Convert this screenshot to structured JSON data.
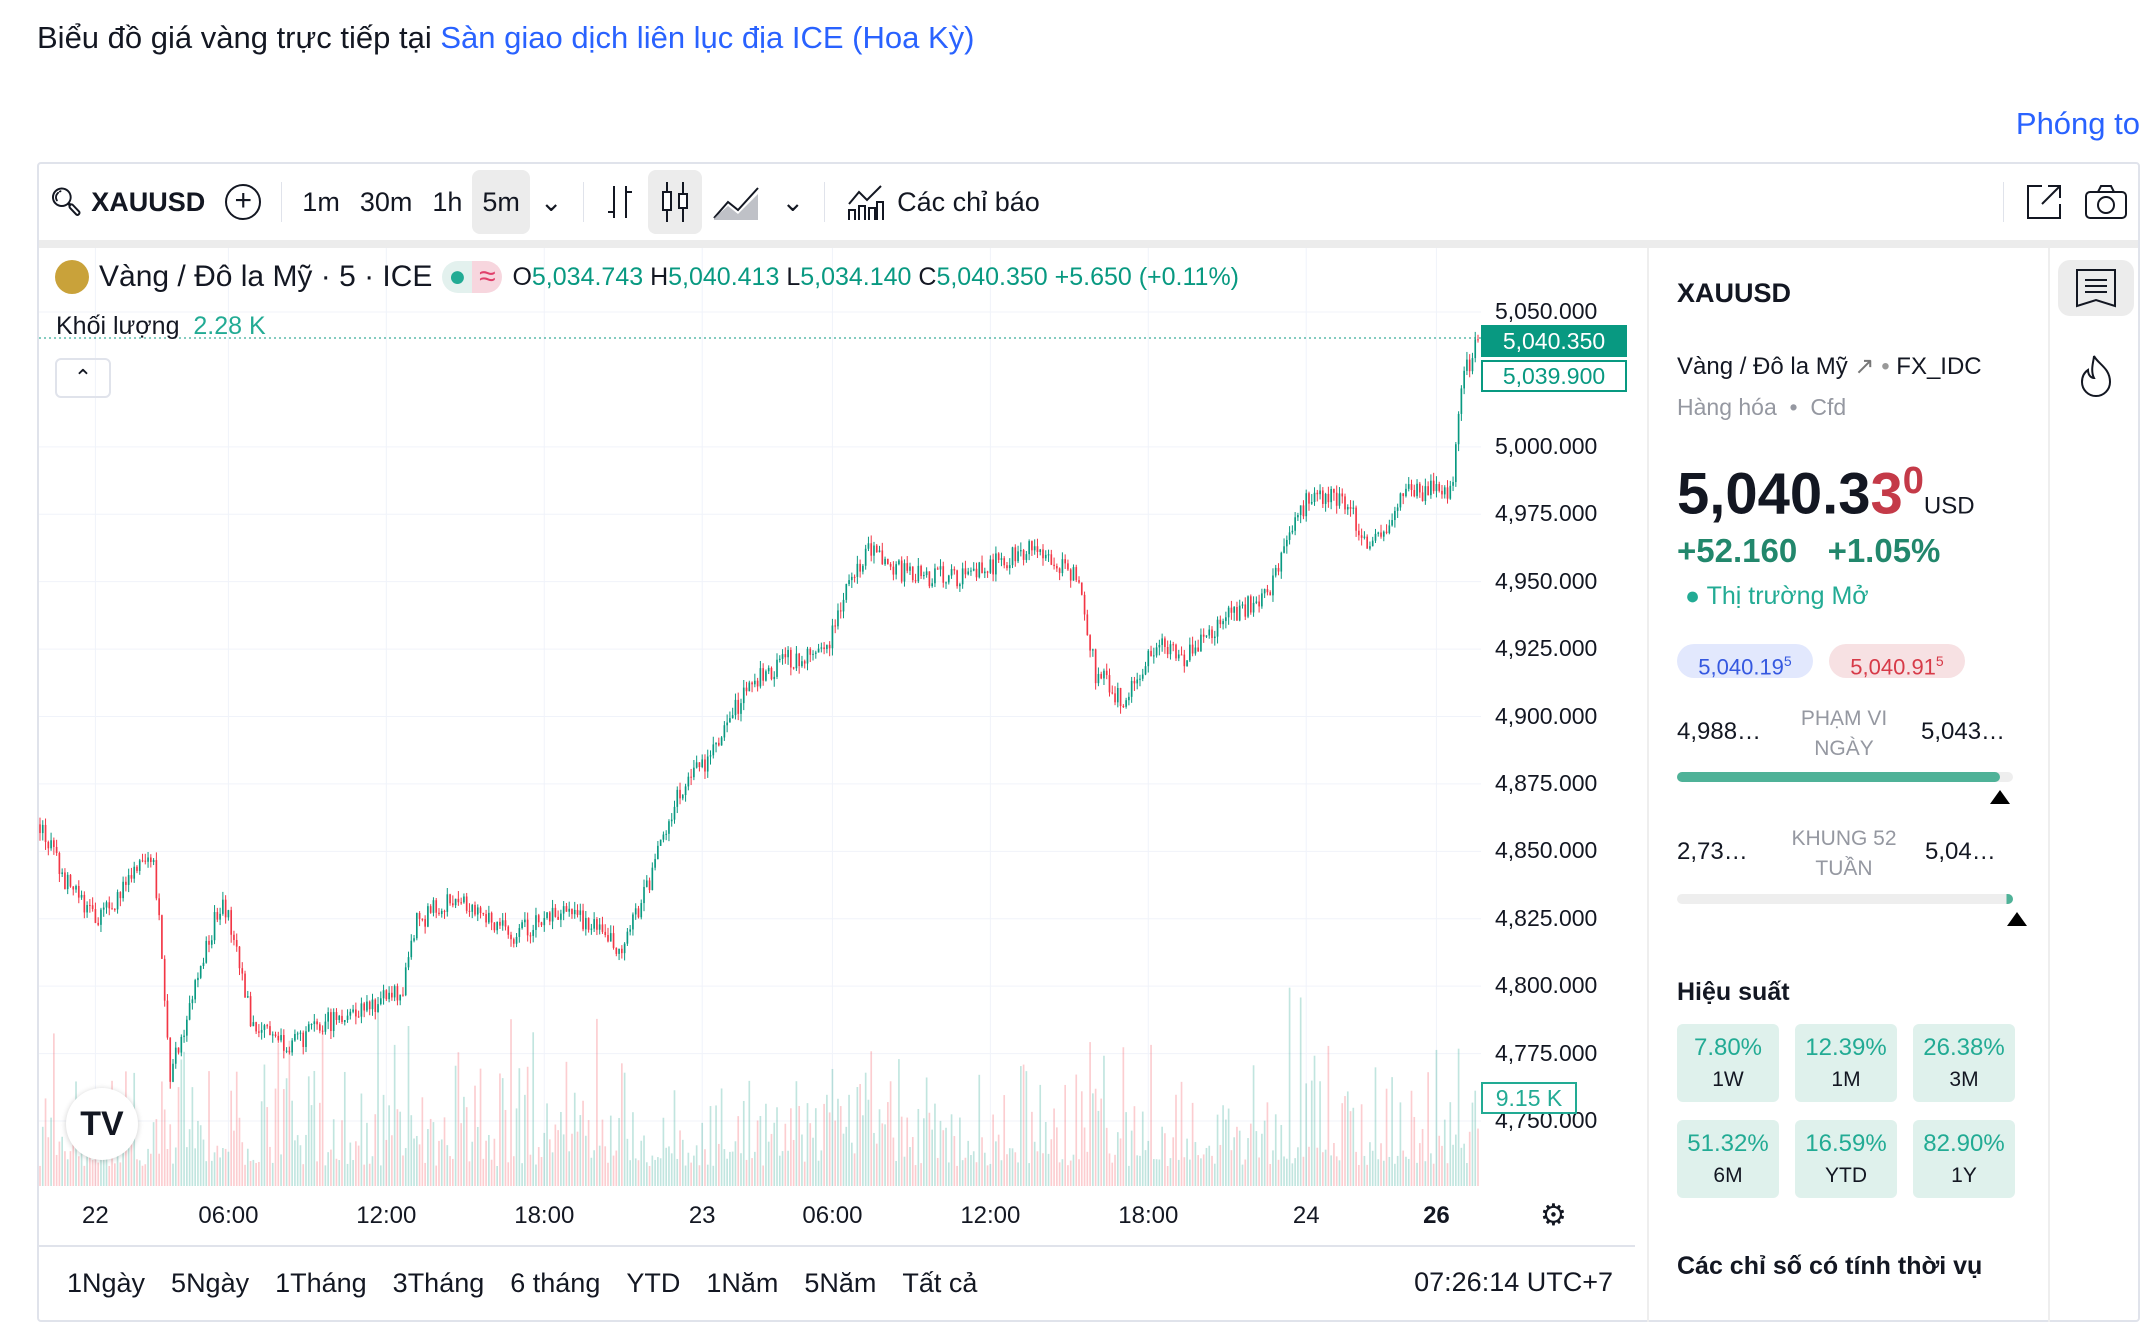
{
  "header": {
    "title_prefix": "Biểu đồ giá vàng trực tiếp tại ",
    "title_link": "Sàn giao dịch liên lục địa ICE (Hoa Kỳ)",
    "zoom_link": "Phóng to"
  },
  "toolbar": {
    "symbol": "XAUUSD",
    "intervals": [
      "1m",
      "30m",
      "1h",
      "5m"
    ],
    "selected_interval": "5m",
    "indicators": "Các chỉ báo"
  },
  "legend": {
    "name": "Vàng / Đô la Mỹ · 5 · ICE",
    "o": "5,034.743",
    "h": "5,040.413",
    "l": "5,034.140",
    "c": "5,040.350",
    "change": "+5.650 (+0.11%)",
    "volume_label": "Khối lượng",
    "volume_value": "2.28 K"
  },
  "axis": {
    "y_ticks": [
      "5,050.000",
      "5,000.000",
      "4,975.000",
      "4,950.000",
      "4,925.000",
      "4,900.000",
      "4,875.000",
      "4,850.000",
      "4,825.000",
      "4,800.000",
      "4,775.000",
      "4,750.000"
    ],
    "y_values": [
      5050,
      5000,
      4975,
      4950,
      4925,
      4900,
      4875,
      4850,
      4825,
      4800,
      4775,
      4750
    ],
    "x_ticks": [
      "22",
      "06:00",
      "12:00",
      "18:00",
      "23",
      "06:00",
      "12:00",
      "18:00",
      "24",
      "26"
    ],
    "x_tick_bars": [
      20,
      68,
      125,
      182,
      239,
      286,
      343,
      400,
      457,
      504
    ],
    "last_price": "5,040.350",
    "last_price_value": 5040.35,
    "prev_price": "5,039.900",
    "volume_max": "9.15 K"
  },
  "chart_data": {
    "type": "candlestick",
    "bars": 520,
    "ylim": [
      4730,
      5060
    ],
    "waypoints": [
      [
        0,
        4860
      ],
      [
        9,
        4839
      ],
      [
        21,
        4824
      ],
      [
        41,
        4850
      ],
      [
        47,
        4768
      ],
      [
        66,
        4834
      ],
      [
        76,
        4788
      ],
      [
        91,
        4778
      ],
      [
        106,
        4788
      ],
      [
        131,
        4798
      ],
      [
        136,
        4824
      ],
      [
        151,
        4834
      ],
      [
        170,
        4819
      ],
      [
        190,
        4829
      ],
      [
        210,
        4814
      ],
      [
        220,
        4839
      ],
      [
        230,
        4870
      ],
      [
        245,
        4890
      ],
      [
        255,
        4911
      ],
      [
        270,
        4921
      ],
      [
        284,
        4926
      ],
      [
        292,
        4952
      ],
      [
        299,
        4962
      ],
      [
        314,
        4952
      ],
      [
        334,
        4952
      ],
      [
        356,
        4962
      ],
      [
        374,
        4952
      ],
      [
        381,
        4916
      ],
      [
        391,
        4906
      ],
      [
        403,
        4926
      ],
      [
        413,
        4921
      ],
      [
        428,
        4936
      ],
      [
        443,
        4946
      ],
      [
        458,
        4982
      ],
      [
        470,
        4982
      ],
      [
        480,
        4962
      ],
      [
        493,
        4982
      ],
      [
        510,
        4985
      ],
      [
        513,
        5023
      ],
      [
        519,
        5040
      ]
    ],
    "colors": {
      "up": "#089981",
      "down": "#f23645"
    }
  },
  "range_bar": {
    "ranges": [
      "1Ngày",
      "5Ngày",
      "1Tháng",
      "3Tháng",
      "6 tháng",
      "YTD",
      "1Năm",
      "5Năm",
      "Tất cả"
    ],
    "clock": "07:26:14 UTC+7"
  },
  "panel": {
    "symbol": "XAUUSD",
    "name": "Vàng / Đô la Mỹ",
    "exchange": "FX_IDC",
    "category": "Hàng hóa",
    "type": "Cfd",
    "price_main": "5,040.3",
    "price_tail": "3",
    "price_sup": "0",
    "currency": "USD",
    "change": "+52.160",
    "change_pct": "+1.05%",
    "status": "Thị trường Mở",
    "bid": "5,040.19",
    "bid_sup": "5",
    "ask": "5,040.91",
    "ask_sup": "5",
    "day_low": "4,988…",
    "day_label_1": "PHẠM VI",
    "day_label_2": "NGÀY",
    "day_high": "5,043…",
    "day_pos": 0.96,
    "wk_low": "2,73…",
    "wk_label_1": "KHUNG 52",
    "wk_label_2": "TUẦN",
    "wk_high": "5,04…",
    "wk_pos": 0.995,
    "perf_title": "Hiệu suất",
    "perf": [
      {
        "v": "7.80%",
        "p": "1W"
      },
      {
        "v": "12.39%",
        "p": "1M"
      },
      {
        "v": "26.38%",
        "p": "3M"
      },
      {
        "v": "51.32%",
        "p": "6M"
      },
      {
        "v": "16.59%",
        "p": "YTD"
      },
      {
        "v": "82.90%",
        "p": "1Y"
      }
    ],
    "seasonal_title": "Các chỉ số có tính thời vụ"
  }
}
